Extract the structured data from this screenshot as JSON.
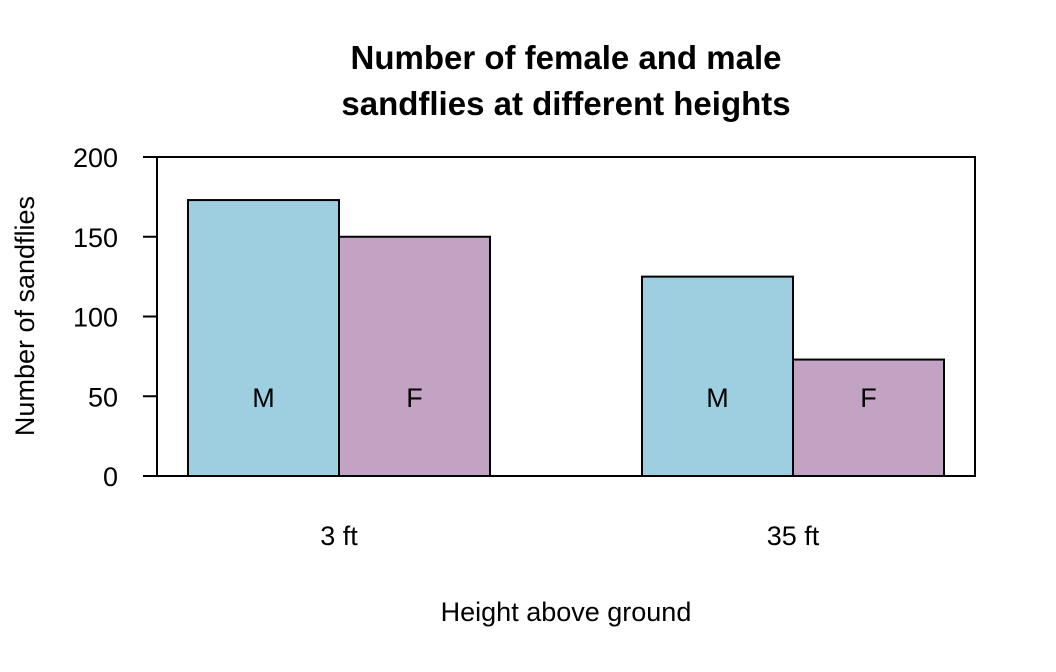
{
  "chart_data": {
    "type": "bar",
    "title": [
      "Number of female and male",
      "sandflies at different heights"
    ],
    "xlabel": "Height above ground",
    "ylabel": "Number of sandflies",
    "categories": [
      "3 ft",
      "35 ft"
    ],
    "series": [
      {
        "name": "M",
        "color": "#9ecfe0",
        "values": [
          173,
          125
        ]
      },
      {
        "name": "F",
        "color": "#c3a3c3",
        "values": [
          150,
          73
        ]
      }
    ],
    "ylim": [
      0,
      200
    ],
    "yticks": [
      0,
      50,
      100,
      150,
      200
    ],
    "grid": false,
    "legend": "none"
  }
}
